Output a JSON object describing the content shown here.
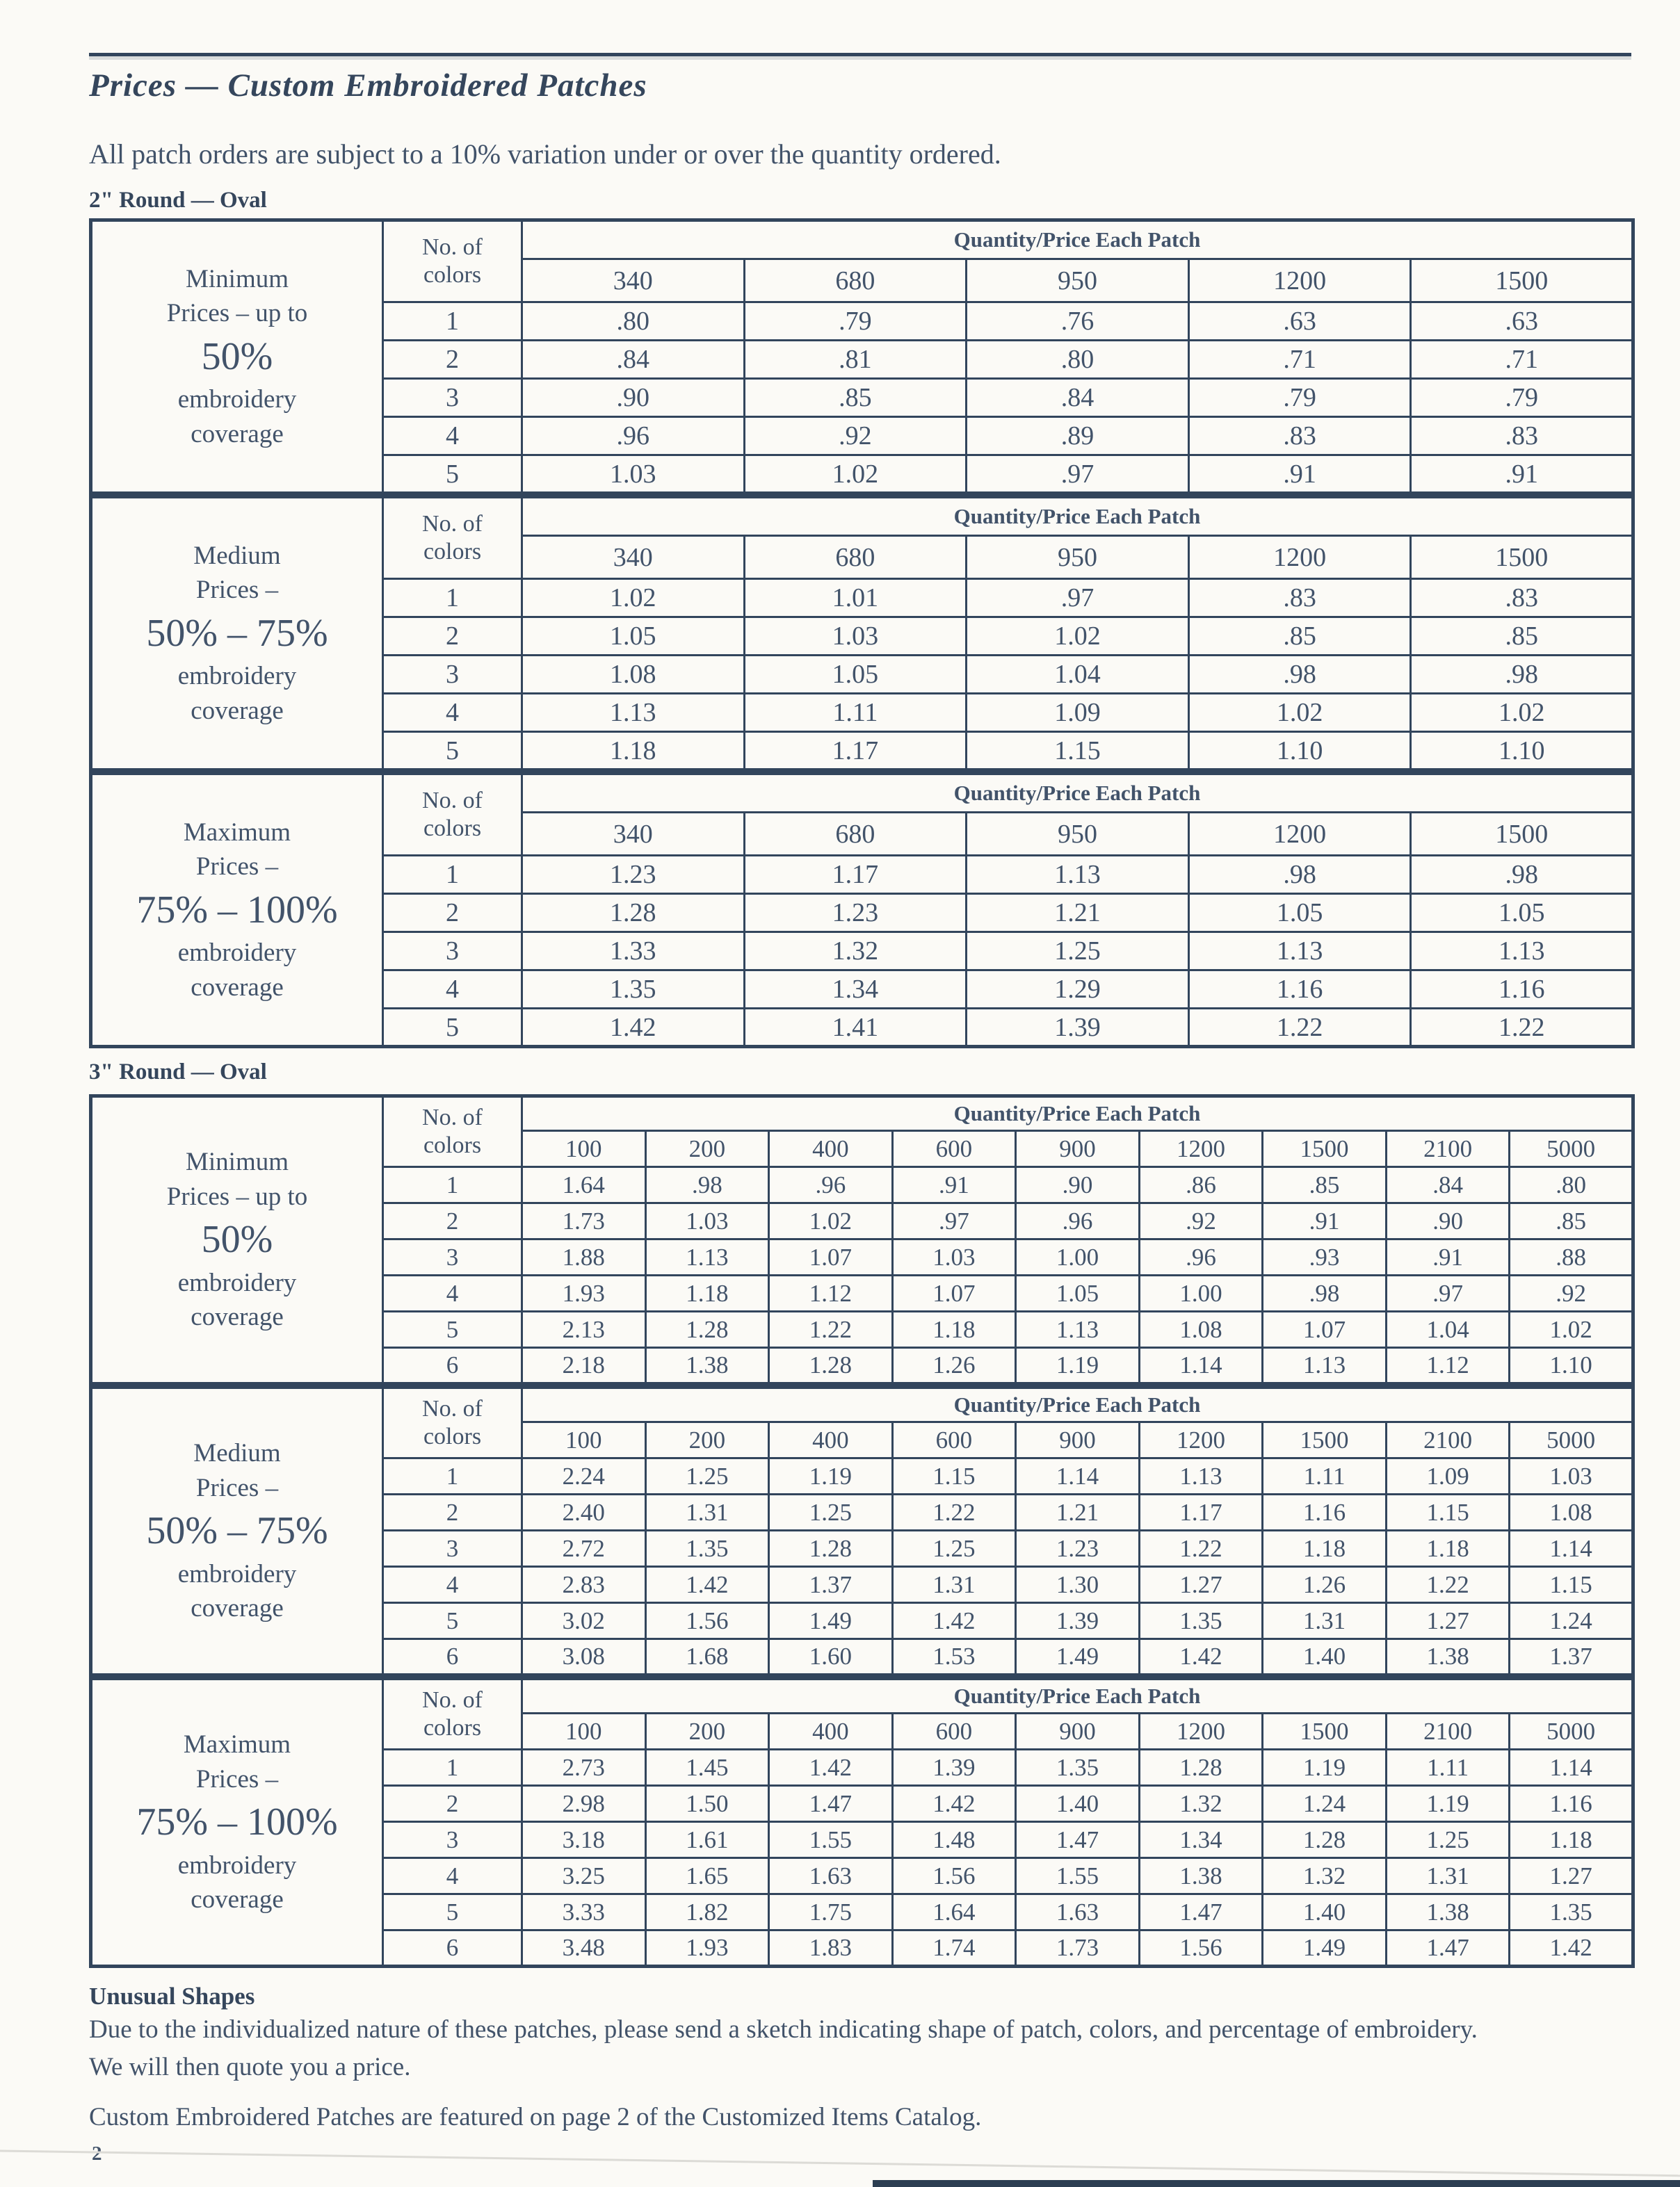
{
  "doc": {
    "title": "Prices — Custom Embroidered Patches",
    "subtitle": "All patch orders are subject to a 10% variation under or over the quantity ordered.",
    "unusual_shapes": {
      "heading": "Unusual Shapes",
      "line1": "Due to the individualized nature of these patches, please send a sketch indicating shape of patch, colors, and percentage of embroidery.",
      "line2": "We will then quote you a price."
    },
    "catalog_note": "Custom Embroidered Patches are featured on page 2 of the Customized Items Catalog.",
    "page_number": "2"
  },
  "table_labels": {
    "colors_header_line1": "No. of",
    "colors_header_line2": "colors",
    "quantity_header": "Quantity/Price Each Patch"
  },
  "palette": {
    "ink": "#42536a",
    "border": "#32455c",
    "paper": "#fbfaf6"
  },
  "sections": [
    {
      "heading": "2\" Round — Oval",
      "quantities": [
        "340",
        "680",
        "950",
        "1200",
        "1500"
      ],
      "blocks": [
        {
          "label_lines": [
            {
              "text": "Minimum"
            },
            {
              "text": "Prices – up to"
            },
            {
              "text": "50%",
              "large": true
            },
            {
              "text": "embroidery"
            },
            {
              "text": "coverage"
            }
          ],
          "rows": [
            {
              "colors": "1",
              "prices": [
                ".80",
                ".79",
                ".76",
                ".63",
                ".63"
              ]
            },
            {
              "colors": "2",
              "prices": [
                ".84",
                ".81",
                ".80",
                ".71",
                ".71"
              ]
            },
            {
              "colors": "3",
              "prices": [
                ".90",
                ".85",
                ".84",
                ".79",
                ".79"
              ]
            },
            {
              "colors": "4",
              "prices": [
                ".96",
                ".92",
                ".89",
                ".83",
                ".83"
              ]
            },
            {
              "colors": "5",
              "prices": [
                "1.03",
                "1.02",
                ".97",
                ".91",
                ".91"
              ]
            }
          ]
        },
        {
          "label_lines": [
            {
              "text": "Medium"
            },
            {
              "text": "Prices –"
            },
            {
              "text": "50% – 75%",
              "large": true
            },
            {
              "text": "embroidery"
            },
            {
              "text": "coverage"
            }
          ],
          "rows": [
            {
              "colors": "1",
              "prices": [
                "1.02",
                "1.01",
                ".97",
                ".83",
                ".83"
              ]
            },
            {
              "colors": "2",
              "prices": [
                "1.05",
                "1.03",
                "1.02",
                ".85",
                ".85"
              ]
            },
            {
              "colors": "3",
              "prices": [
                "1.08",
                "1.05",
                "1.04",
                ".98",
                ".98"
              ]
            },
            {
              "colors": "4",
              "prices": [
                "1.13",
                "1.11",
                "1.09",
                "1.02",
                "1.02"
              ]
            },
            {
              "colors": "5",
              "prices": [
                "1.18",
                "1.17",
                "1.15",
                "1.10",
                "1.10"
              ]
            }
          ]
        },
        {
          "label_lines": [
            {
              "text": "Maximum"
            },
            {
              "text": "Prices –"
            },
            {
              "text": "75% – 100%",
              "large": true
            },
            {
              "text": "embroidery"
            },
            {
              "text": "coverage"
            }
          ],
          "rows": [
            {
              "colors": "1",
              "prices": [
                "1.23",
                "1.17",
                "1.13",
                ".98",
                ".98"
              ]
            },
            {
              "colors": "2",
              "prices": [
                "1.28",
                "1.23",
                "1.21",
                "1.05",
                "1.05"
              ]
            },
            {
              "colors": "3",
              "prices": [
                "1.33",
                "1.32",
                "1.25",
                "1.13",
                "1.13"
              ]
            },
            {
              "colors": "4",
              "prices": [
                "1.35",
                "1.34",
                "1.29",
                "1.16",
                "1.16"
              ]
            },
            {
              "colors": "5",
              "prices": [
                "1.42",
                "1.41",
                "1.39",
                "1.22",
                "1.22"
              ]
            }
          ]
        }
      ]
    },
    {
      "heading": "3\" Round — Oval",
      "quantities": [
        "100",
        "200",
        "400",
        "600",
        "900",
        "1200",
        "1500",
        "2100",
        "5000"
      ],
      "blocks": [
        {
          "label_lines": [
            {
              "text": "Minimum"
            },
            {
              "text": "Prices – up to"
            },
            {
              "text": "50%",
              "large": true
            },
            {
              "text": "embroidery"
            },
            {
              "text": "coverage"
            }
          ],
          "rows": [
            {
              "colors": "1",
              "prices": [
                "1.64",
                ".98",
                ".96",
                ".91",
                ".90",
                ".86",
                ".85",
                ".84",
                ".80"
              ]
            },
            {
              "colors": "2",
              "prices": [
                "1.73",
                "1.03",
                "1.02",
                ".97",
                ".96",
                ".92",
                ".91",
                ".90",
                ".85"
              ]
            },
            {
              "colors": "3",
              "prices": [
                "1.88",
                "1.13",
                "1.07",
                "1.03",
                "1.00",
                ".96",
                ".93",
                ".91",
                ".88"
              ]
            },
            {
              "colors": "4",
              "prices": [
                "1.93",
                "1.18",
                "1.12",
                "1.07",
                "1.05",
                "1.00",
                ".98",
                ".97",
                ".92"
              ]
            },
            {
              "colors": "5",
              "prices": [
                "2.13",
                "1.28",
                "1.22",
                "1.18",
                "1.13",
                "1.08",
                "1.07",
                "1.04",
                "1.02"
              ]
            },
            {
              "colors": "6",
              "prices": [
                "2.18",
                "1.38",
                "1.28",
                "1.26",
                "1.19",
                "1.14",
                "1.13",
                "1.12",
                "1.10"
              ]
            }
          ]
        },
        {
          "label_lines": [
            {
              "text": "Medium"
            },
            {
              "text": "Prices –"
            },
            {
              "text": "50% – 75%",
              "large": true
            },
            {
              "text": "embroidery"
            },
            {
              "text": "coverage"
            }
          ],
          "rows": [
            {
              "colors": "1",
              "prices": [
                "2.24",
                "1.25",
                "1.19",
                "1.15",
                "1.14",
                "1.13",
                "1.11",
                "1.09",
                "1.03"
              ]
            },
            {
              "colors": "2",
              "prices": [
                "2.40",
                "1.31",
                "1.25",
                "1.22",
                "1.21",
                "1.17",
                "1.16",
                "1.15",
                "1.08"
              ]
            },
            {
              "colors": "3",
              "prices": [
                "2.72",
                "1.35",
                "1.28",
                "1.25",
                "1.23",
                "1.22",
                "1.18",
                "1.18",
                "1.14"
              ]
            },
            {
              "colors": "4",
              "prices": [
                "2.83",
                "1.42",
                "1.37",
                "1.31",
                "1.30",
                "1.27",
                "1.26",
                "1.22",
                "1.15"
              ]
            },
            {
              "colors": "5",
              "prices": [
                "3.02",
                "1.56",
                "1.49",
                "1.42",
                "1.39",
                "1.35",
                "1.31",
                "1.27",
                "1.24"
              ]
            },
            {
              "colors": "6",
              "prices": [
                "3.08",
                "1.68",
                "1.60",
                "1.53",
                "1.49",
                "1.42",
                "1.40",
                "1.38",
                "1.37"
              ]
            }
          ]
        },
        {
          "label_lines": [
            {
              "text": "Maximum"
            },
            {
              "text": "Prices –"
            },
            {
              "text": "75% – 100%",
              "large": true
            },
            {
              "text": "embroidery"
            },
            {
              "text": "coverage"
            }
          ],
          "rows": [
            {
              "colors": "1",
              "prices": [
                "2.73",
                "1.45",
                "1.42",
                "1.39",
                "1.35",
                "1.28",
                "1.19",
                "1.11",
                "1.14"
              ]
            },
            {
              "colors": "2",
              "prices": [
                "2.98",
                "1.50",
                "1.47",
                "1.42",
                "1.40",
                "1.32",
                "1.24",
                "1.19",
                "1.16"
              ]
            },
            {
              "colors": "3",
              "prices": [
                "3.18",
                "1.61",
                "1.55",
                "1.48",
                "1.47",
                "1.34",
                "1.28",
                "1.25",
                "1.18"
              ]
            },
            {
              "colors": "4",
              "prices": [
                "3.25",
                "1.65",
                "1.63",
                "1.56",
                "1.55",
                "1.38",
                "1.32",
                "1.31",
                "1.27"
              ]
            },
            {
              "colors": "5",
              "prices": [
                "3.33",
                "1.82",
                "1.75",
                "1.64",
                "1.63",
                "1.47",
                "1.40",
                "1.38",
                "1.35"
              ]
            },
            {
              "colors": "6",
              "prices": [
                "3.48",
                "1.93",
                "1.83",
                "1.74",
                "1.73",
                "1.56",
                "1.49",
                "1.47",
                "1.42"
              ]
            }
          ]
        }
      ]
    }
  ]
}
